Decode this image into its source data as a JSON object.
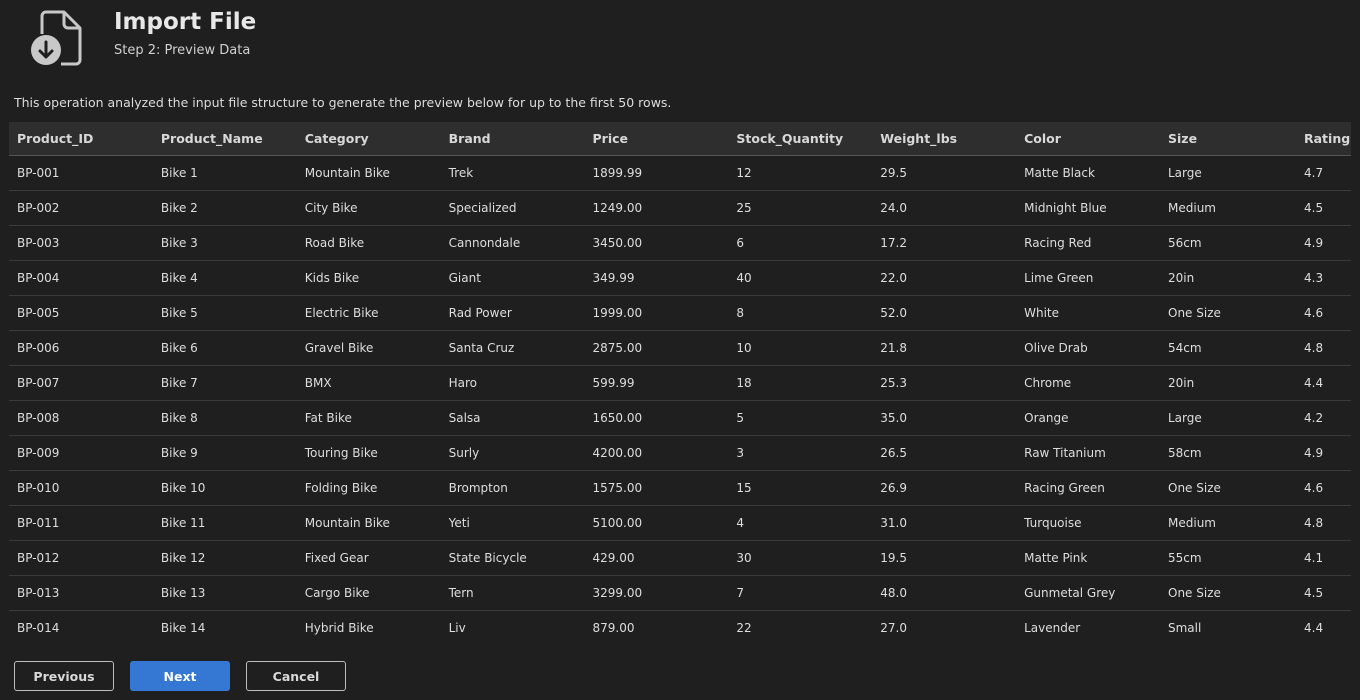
{
  "header": {
    "title": "Import File",
    "subtitle": "Step 2: Preview Data",
    "icon": "file-import-icon"
  },
  "description": "This operation analyzed the input file structure to generate the preview below for up to the first 50 rows.",
  "table": {
    "columns": [
      "Product_ID",
      "Product_Name",
      "Category",
      "Brand",
      "Price",
      "Stock_Quantity",
      "Weight_lbs",
      "Color",
      "Size",
      "Rating"
    ],
    "rows": [
      [
        "BP-001",
        "Bike 1",
        "Mountain Bike",
        "Trek",
        "1899.99",
        "12",
        "29.5",
        "Matte Black",
        "Large",
        "4.7"
      ],
      [
        "BP-002",
        "Bike 2",
        "City Bike",
        "Specialized",
        "1249.00",
        "25",
        "24.0",
        "Midnight Blue",
        "Medium",
        "4.5"
      ],
      [
        "BP-003",
        "Bike 3",
        "Road Bike",
        "Cannondale",
        "3450.00",
        "6",
        "17.2",
        "Racing Red",
        "56cm",
        "4.9"
      ],
      [
        "BP-004",
        "Bike 4",
        "Kids Bike",
        "Giant",
        "349.99",
        "40",
        "22.0",
        "Lime Green",
        "20in",
        "4.3"
      ],
      [
        "BP-005",
        "Bike 5",
        "Electric Bike",
        "Rad Power",
        "1999.00",
        "8",
        "52.0",
        "White",
        "One Size",
        "4.6"
      ],
      [
        "BP-006",
        "Bike 6",
        "Gravel Bike",
        "Santa Cruz",
        "2875.00",
        "10",
        "21.8",
        "Olive Drab",
        "54cm",
        "4.8"
      ],
      [
        "BP-007",
        "Bike 7",
        "BMX",
        "Haro",
        "599.99",
        "18",
        "25.3",
        "Chrome",
        "20in",
        "4.4"
      ],
      [
        "BP-008",
        "Bike 8",
        "Fat Bike",
        "Salsa",
        "1650.00",
        "5",
        "35.0",
        "Orange",
        "Large",
        "4.2"
      ],
      [
        "BP-009",
        "Bike 9",
        "Touring Bike",
        "Surly",
        "4200.00",
        "3",
        "26.5",
        "Raw Titanium",
        "58cm",
        "4.9"
      ],
      [
        "BP-010",
        "Bike 10",
        "Folding Bike",
        "Brompton",
        "1575.00",
        "15",
        "26.9",
        "Racing Green",
        "One Size",
        "4.6"
      ],
      [
        "BP-011",
        "Bike 11",
        "Mountain Bike",
        "Yeti",
        "5100.00",
        "4",
        "31.0",
        "Turquoise",
        "Medium",
        "4.8"
      ],
      [
        "BP-012",
        "Bike 12",
        "Fixed Gear",
        "State Bicycle",
        "429.00",
        "30",
        "19.5",
        "Matte Pink",
        "55cm",
        "4.1"
      ],
      [
        "BP-013",
        "Bike 13",
        "Cargo Bike",
        "Tern",
        "3299.00",
        "7",
        "48.0",
        "Gunmetal Grey",
        "One Size",
        "4.5"
      ],
      [
        "BP-014",
        "Bike 14",
        "Hybrid Bike",
        "Liv",
        "879.00",
        "22",
        "27.0",
        "Lavender",
        "Small",
        "4.4"
      ]
    ]
  },
  "buttons": {
    "previous": "Previous",
    "next": "Next",
    "cancel": "Cancel"
  },
  "colors": {
    "background": "#1f1f1f",
    "header_row": "#2e2e2e",
    "primary": "#3578d4"
  }
}
